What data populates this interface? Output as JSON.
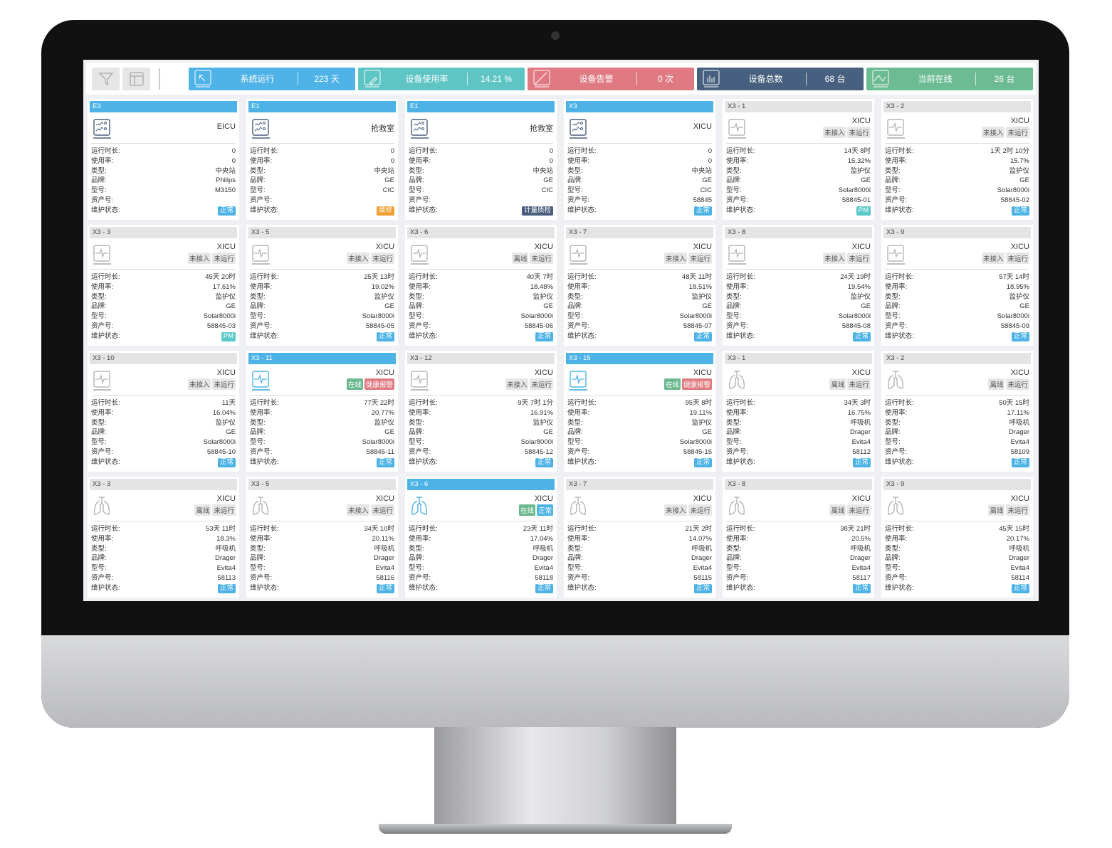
{
  "toolbar": {
    "filter_icon": "filter-icon",
    "layout_icon": "layout-icon",
    "stats": [
      {
        "label": "系统运行",
        "value": "223 天",
        "color": "#4fb3e8",
        "icon": "cursor-icon"
      },
      {
        "label": "设备使用率",
        "value": "14.21 %",
        "color": "#5ec4c4",
        "icon": "edit-icon"
      },
      {
        "label": "设备告警",
        "value": "0 次",
        "color": "#e07a82",
        "icon": "slash-icon"
      },
      {
        "label": "设备总数",
        "value": "68 台",
        "color": "#48607f",
        "icon": "bar-chart-icon"
      },
      {
        "label": "当前在线",
        "value": "26 台",
        "color": "#6dbb93",
        "icon": "trend-icon"
      }
    ]
  },
  "labels": {
    "runtime": "运行时长:",
    "usage": "使用率:",
    "type": "类型:",
    "brand": "品牌:",
    "model": "型号:",
    "asset": "资产号:",
    "maint": "维护状态:"
  },
  "badge_colors": {
    "正常": "#4db3e6",
    "维修": "#f0a030",
    "计量质检": "#4a5f7e",
    "PM": "#5bc8c8",
    "在线": "#6bb88f",
    "健康报警": "#e07b80",
    "未接入": "#e6e6e6",
    "未运行": "#e6e6e6",
    "离线": "#e6e6e6"
  },
  "cards": [
    {
      "title": "E3",
      "active": true,
      "kind": "station",
      "location": "EICU",
      "badges": [],
      "runtime": "0",
      "usage": "0",
      "type": "中央站",
      "brand": "Philips",
      "model": "M3150",
      "asset": "",
      "maint": "正常"
    },
    {
      "title": "E1",
      "active": true,
      "kind": "station",
      "location": "抢救室",
      "badges": [],
      "runtime": "0",
      "usage": "0",
      "type": "中央站",
      "brand": "GE",
      "model": "CIC",
      "asset": "",
      "maint": "维修"
    },
    {
      "title": "E1",
      "active": true,
      "kind": "station",
      "location": "抢救室",
      "badges": [],
      "runtime": "0",
      "usage": "0",
      "type": "中央站",
      "brand": "GE",
      "model": "CIC",
      "asset": "",
      "maint": "计量质检"
    },
    {
      "title": "X3",
      "active": true,
      "kind": "station",
      "location": "XICU",
      "badges": [],
      "runtime": "0",
      "usage": "0",
      "type": "中央站",
      "brand": "GE",
      "model": "CIC",
      "asset": "58845",
      "maint": "正常"
    },
    {
      "title": "X3 - 1",
      "active": false,
      "kind": "monitor",
      "location": "XICU",
      "badges": [
        "未接入",
        "未运行"
      ],
      "runtime": "14天 8时",
      "usage": "15.32%",
      "type": "监护仪",
      "brand": "GE",
      "model": "Solar8000i",
      "asset": "58845-01",
      "maint": "PM"
    },
    {
      "title": "X3 - 2",
      "active": false,
      "kind": "monitor",
      "location": "XICU",
      "badges": [
        "未接入",
        "未运行"
      ],
      "runtime": "1天 2时 10分",
      "usage": "15.7%",
      "type": "监护仪",
      "brand": "GE",
      "model": "Solar8000i",
      "asset": "58845-02",
      "maint": "正常"
    },
    {
      "title": "X3 - 3",
      "active": false,
      "kind": "monitor",
      "location": "XICU",
      "badges": [
        "未接入",
        "未运行"
      ],
      "runtime": "45天 20时",
      "usage": "17.61%",
      "type": "监护仪",
      "brand": "GE",
      "model": "Solar8000i",
      "asset": "58845-03",
      "maint": "PM"
    },
    {
      "title": "X3 - 5",
      "active": false,
      "kind": "monitor",
      "location": "XICU",
      "badges": [
        "未接入",
        "未运行"
      ],
      "runtime": "25天 13时",
      "usage": "19.02%",
      "type": "监护仪",
      "brand": "GE",
      "model": "Solar8000i",
      "asset": "58845-05",
      "maint": "正常"
    },
    {
      "title": "X3 - 6",
      "active": false,
      "kind": "monitor",
      "location": "XICU",
      "badges": [
        "离线",
        "未运行"
      ],
      "runtime": "40天 7时",
      "usage": "18.48%",
      "type": "监护仪",
      "brand": "GE",
      "model": "Solar8000i",
      "asset": "58845-06",
      "maint": "正常"
    },
    {
      "title": "X3 - 7",
      "active": false,
      "kind": "monitor",
      "location": "XICU",
      "badges": [
        "未接入",
        "未运行"
      ],
      "runtime": "48天 11时",
      "usage": "18.51%",
      "type": "监护仪",
      "brand": "GE",
      "model": "Solar8000i",
      "asset": "58845-07",
      "maint": "正常"
    },
    {
      "title": "X3 - 8",
      "active": false,
      "kind": "monitor",
      "location": "XICU",
      "badges": [
        "未接入",
        "未运行"
      ],
      "runtime": "24天 19时",
      "usage": "19.54%",
      "type": "监护仪",
      "brand": "GE",
      "model": "Solar8000i",
      "asset": "58845-08",
      "maint": "正常"
    },
    {
      "title": "X3 - 9",
      "active": false,
      "kind": "monitor",
      "location": "XICU",
      "badges": [
        "未接入",
        "未运行"
      ],
      "runtime": "57天 14时",
      "usage": "18.95%",
      "type": "监护仪",
      "brand": "GE",
      "model": "Solar8000i",
      "asset": "58845-09",
      "maint": "正常"
    },
    {
      "title": "X3 - 10",
      "active": false,
      "kind": "monitor",
      "location": "XICU",
      "badges": [
        "未接入",
        "未运行"
      ],
      "runtime": "11天",
      "usage": "16.04%",
      "type": "监护仪",
      "brand": "GE",
      "model": "Solar8000i",
      "asset": "58845-10",
      "maint": "正常"
    },
    {
      "title": "X3 - 11",
      "active": true,
      "kind": "monitor",
      "location": "XICU",
      "badges": [
        "在线",
        "健康报警"
      ],
      "runtime": "77天 22时",
      "usage": "20.77%",
      "type": "监护仪",
      "brand": "GE",
      "model": "Solar8000i",
      "asset": "58845-11",
      "maint": "正常"
    },
    {
      "title": "X3 - 12",
      "active": false,
      "kind": "monitor",
      "location": "XICU",
      "badges": [
        "未接入",
        "未运行"
      ],
      "runtime": "9天 7时 1分",
      "usage": "16.91%",
      "type": "监护仪",
      "brand": "GE",
      "model": "Solar8000i",
      "asset": "58845-12",
      "maint": "正常"
    },
    {
      "title": "X3 - 15",
      "active": true,
      "kind": "monitor",
      "location": "XICU",
      "badges": [
        "在线",
        "健康报警"
      ],
      "runtime": "95天 8时",
      "usage": "19.11%",
      "type": "监护仪",
      "brand": "GE",
      "model": "Solar8000i",
      "asset": "58845-15",
      "maint": "正常"
    },
    {
      "title": "X3 - 1",
      "active": false,
      "kind": "ventilator",
      "location": "XICU",
      "badges": [
        "离线",
        "未运行"
      ],
      "runtime": "34天 3时",
      "usage": "16.75%",
      "type": "呼吸机",
      "brand": "Drager",
      "model": "Evita4",
      "asset": "58112",
      "maint": "正常"
    },
    {
      "title": "X3 - 2",
      "active": false,
      "kind": "ventilator",
      "location": "XICU",
      "badges": [
        "离线",
        "未运行"
      ],
      "runtime": "50天 15时",
      "usage": "17.11%",
      "type": "呼吸机",
      "brand": "Drager",
      "model": "Evita4",
      "asset": "58109",
      "maint": "正常"
    },
    {
      "title": "X3 - 3",
      "active": false,
      "kind": "ventilator",
      "location": "XICU",
      "badges": [
        "离线",
        "未运行"
      ],
      "runtime": "53天 11时",
      "usage": "18.3%",
      "type": "呼吸机",
      "brand": "Drager",
      "model": "Evita4",
      "asset": "58113",
      "maint": "正常"
    },
    {
      "title": "X3 - 5",
      "active": false,
      "kind": "ventilator",
      "location": "XICU",
      "badges": [
        "未接入",
        "未运行"
      ],
      "runtime": "34天 10时",
      "usage": "20.11%",
      "type": "呼吸机",
      "brand": "Drager",
      "model": "Evita4",
      "asset": "58116",
      "maint": "正常"
    },
    {
      "title": "X3 - 6",
      "active": true,
      "kind": "ventilator",
      "location": "XICU",
      "badges": [
        "在线",
        "正常"
      ],
      "runtime": "23天 11时",
      "usage": "17.04%",
      "type": "呼吸机",
      "brand": "Drager",
      "model": "Evita4",
      "asset": "58118",
      "maint": "正常"
    },
    {
      "title": "X3 - 7",
      "active": false,
      "kind": "ventilator",
      "location": "XICU",
      "badges": [
        "未接入",
        "未运行"
      ],
      "runtime": "21天 2时",
      "usage": "14.07%",
      "type": "呼吸机",
      "brand": "Drager",
      "model": "Evita4",
      "asset": "58115",
      "maint": "正常"
    },
    {
      "title": "X3 - 8",
      "active": false,
      "kind": "ventilator",
      "location": "XICU",
      "badges": [
        "离线",
        "未运行"
      ],
      "runtime": "38天 21时",
      "usage": "20.5%",
      "type": "呼吸机",
      "brand": "Drager",
      "model": "Evita4",
      "asset": "58117",
      "maint": "正常"
    },
    {
      "title": "X3 - 9",
      "active": false,
      "kind": "ventilator",
      "location": "XICU",
      "badges": [
        "离线",
        "未运行"
      ],
      "runtime": "45天 15时",
      "usage": "20.17%",
      "type": "呼吸机",
      "brand": "Drager",
      "model": "Evita4",
      "asset": "58114",
      "maint": "正常"
    }
  ]
}
